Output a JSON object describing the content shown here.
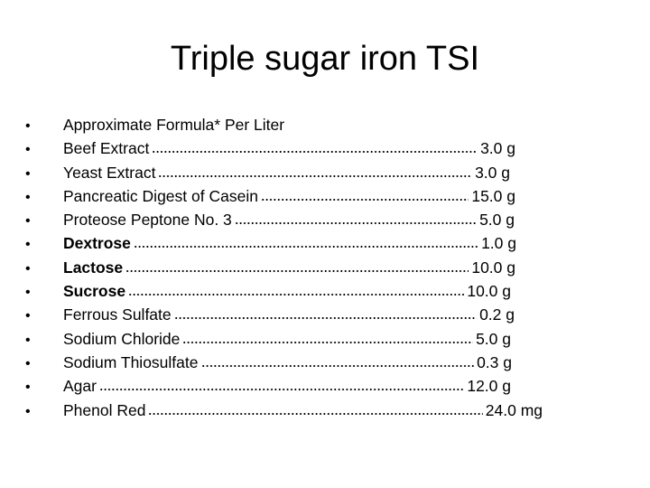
{
  "title": "Triple sugar iron TSI",
  "header_line": "Approximate Formula* Per Liter",
  "bullet": "•",
  "items": [
    {
      "label": "Beef Extract",
      "amount": "3.0 g",
      "bold": false
    },
    {
      "label": "Yeast Extract",
      "amount": "3.0 g",
      "bold": false
    },
    {
      "label": "Pancreatic Digest of Casein",
      "amount": "15.0 g",
      "bold": false
    },
    {
      "label": "Proteose Peptone No. 3",
      "amount": "5.0 g",
      "bold": false
    },
    {
      "label": "Dextrose",
      "amount": "1.0 g",
      "bold": true
    },
    {
      "label": "Lactose",
      "amount": "10.0 g",
      "bold": true
    },
    {
      "label": "Sucrose",
      "amount": "10.0 g",
      "bold": true
    },
    {
      "label": "Ferrous Sulfate",
      "amount": "0.2 g",
      "bold": false
    },
    {
      "label": "Sodium Chloride",
      "amount": "5.0 g",
      "bold": false
    },
    {
      "label": "Sodium Thiosulfate",
      "amount": "0.3 g",
      "bold": false
    },
    {
      "label": "Agar",
      "amount": "12.0 g",
      "bold": false
    },
    {
      "label": "Phenol Red",
      "amount": "24.0 mg",
      "bold": false
    }
  ]
}
